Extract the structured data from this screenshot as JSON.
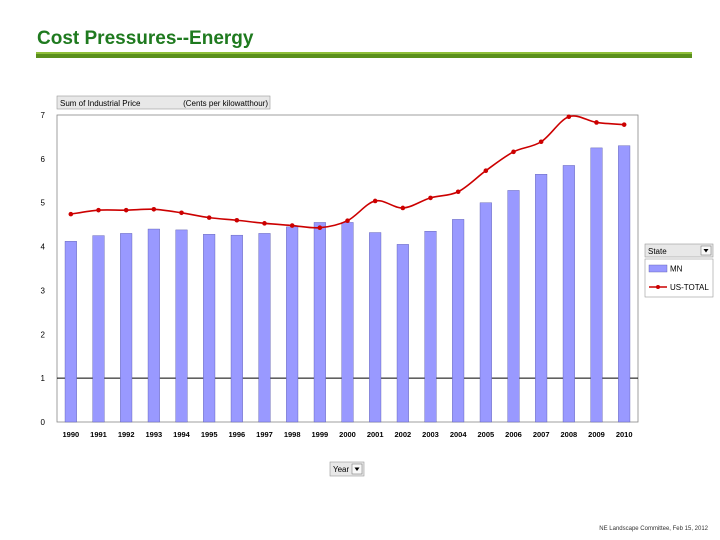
{
  "slide": {
    "title": "Cost Pressures--Energy",
    "footer": "NE Landscape Committee, Feb 15, 2012"
  },
  "colors": {
    "bar": "#9999ff",
    "bar_stroke": "#5555aa",
    "line": "#cc0000",
    "accent": "#5a8f1c"
  },
  "chart_data": {
    "type": "bar",
    "field_label": "Sum of Industrial Price",
    "units_label": "(Cents per kilowatthour)",
    "categories": [
      "1990",
      "1991",
      "1992",
      "1993",
      "1994",
      "1995",
      "1996",
      "1997",
      "1998",
      "1999",
      "2000",
      "2001",
      "2002",
      "2003",
      "2004",
      "2005",
      "2006",
      "2007",
      "2008",
      "2009",
      "2010"
    ],
    "series": [
      {
        "name": "MN",
        "type": "bar",
        "values": [
          4.12,
          4.25,
          4.3,
          4.4,
          4.38,
          4.28,
          4.26,
          4.3,
          4.45,
          4.55,
          4.55,
          4.32,
          4.05,
          4.35,
          4.62,
          5.0,
          5.28,
          5.65,
          5.85,
          6.25,
          6.3
        ]
      },
      {
        "name": "US-TOTAL",
        "type": "line",
        "values": [
          4.74,
          4.83,
          4.83,
          4.85,
          4.77,
          4.66,
          4.6,
          4.53,
          4.48,
          4.43,
          4.59,
          5.04,
          4.88,
          5.11,
          5.25,
          5.73,
          6.16,
          6.39,
          6.96,
          6.83,
          6.78
        ]
      }
    ],
    "y_ticks": [
      "0",
      "1",
      "2",
      "3",
      "4",
      "5",
      "6",
      "7"
    ],
    "ylim": [
      0,
      7
    ],
    "legend_title": "State",
    "x_field": "Year",
    "legend_position": "right"
  }
}
